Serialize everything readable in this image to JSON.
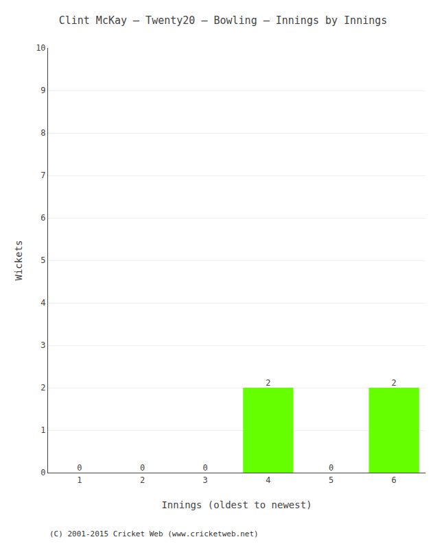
{
  "chart_data": {
    "type": "bar",
    "title": "Clint McKay – Twenty20 – Bowling – Innings by Innings",
    "x_label": "Innings (oldest to newest)",
    "y_label": "Wickets",
    "categories": [
      "1",
      "2",
      "3",
      "4",
      "5",
      "6"
    ],
    "values": [
      0,
      0,
      0,
      2,
      0,
      2
    ],
    "color": "#66ff00",
    "ylim": [
      0,
      10
    ],
    "yticks": [
      0,
      1,
      2,
      3,
      4,
      5,
      6,
      7,
      8,
      9,
      10
    ],
    "grid": true,
    "data_labels": true,
    "annotations": [
      "(C) 2001-2015 Cricket Web (www.cricketweb.net)"
    ]
  }
}
